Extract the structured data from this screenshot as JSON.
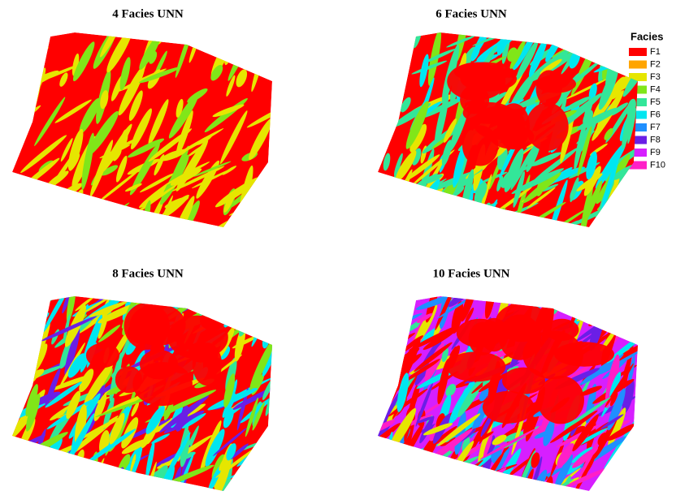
{
  "panels": [
    {
      "title": "4 Facies UNN"
    },
    {
      "title": "6 Facies UNN"
    },
    {
      "title": "8 Facies UNN"
    },
    {
      "title": "10 Facies UNN"
    }
  ],
  "legend": {
    "title": "Facies",
    "items": [
      {
        "label": "F1",
        "color": "#ff0000"
      },
      {
        "label": "F2",
        "color": "#ffa500"
      },
      {
        "label": "F3",
        "color": "#e6e600"
      },
      {
        "label": "F4",
        "color": "#80e619"
      },
      {
        "label": "F5",
        "color": "#33e699"
      },
      {
        "label": "F6",
        "color": "#00e6f0"
      },
      {
        "label": "F7",
        "color": "#1f8fff"
      },
      {
        "label": "F8",
        "color": "#6a1fe6"
      },
      {
        "label": "F9",
        "color": "#d61fff"
      },
      {
        "label": "F10",
        "color": "#ff1fc8"
      }
    ]
  }
}
